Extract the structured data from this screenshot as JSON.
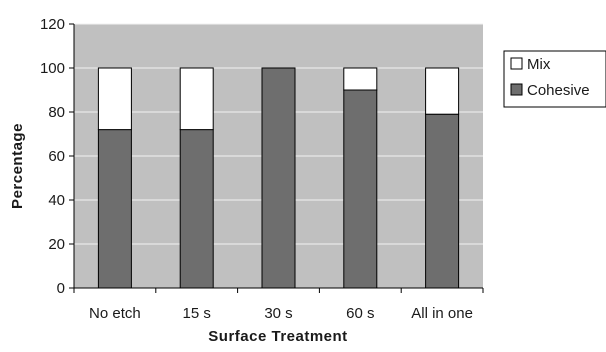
{
  "chart_data": {
    "type": "bar",
    "stacked": true,
    "categories": [
      "No etch",
      "15 s",
      "30 s",
      "60 s",
      "All in one"
    ],
    "series": [
      {
        "name": "Cohesive",
        "values": [
          72,
          72,
          100,
          90,
          79
        ],
        "color": "#6e6e6e"
      },
      {
        "name": "Mix",
        "values": [
          28,
          28,
          0,
          10,
          21
        ],
        "color": "#ffffff"
      }
    ],
    "legend_order": [
      "Mix",
      "Cohesive"
    ],
    "legend_position": "right",
    "xlabel": "Surface Treatment",
    "ylabel": "Percentage",
    "ylim": [
      0,
      120
    ],
    "yticks": [
      0,
      20,
      40,
      60,
      80,
      100,
      120
    ],
    "grid": true,
    "plot_background": "#c0c0c0",
    "gridline_color": "#f2f2f2",
    "bar_outline_color": "#000000"
  }
}
